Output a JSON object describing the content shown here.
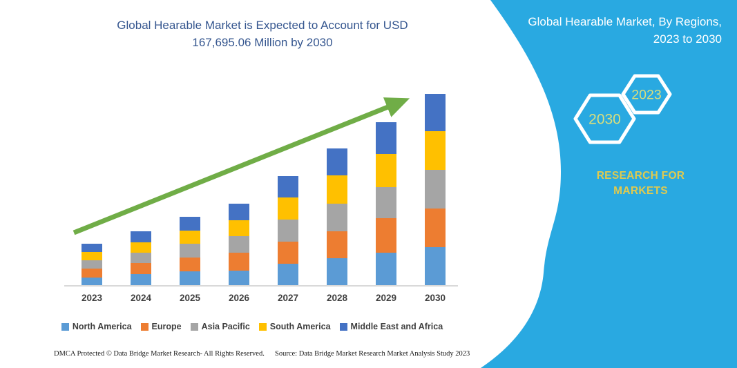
{
  "main_title": {
    "line1": "Global Hearable Market is Expected to Account for USD",
    "line2": "167,695.06 Million by 2030",
    "color": "#35568f"
  },
  "side_panel": {
    "color": "#29a9e1",
    "title_line1": "Global Hearable Market, By Regions,",
    "title_line2": "2023 to 2030",
    "hexagon_back_year": "2030",
    "hexagon_front_year": "2023",
    "hexagon_year_color": "#d9de7d",
    "hexagon_outline_color": "#ffffff",
    "brand_line1": "RESEARCH FOR",
    "brand_line2": "MARKETS",
    "brand_color": "#e0ca4e"
  },
  "chart_data": {
    "type": "bar",
    "subtype": "stacked-vertical",
    "title": "Global Hearable Market is Expected to Account for USD 167,695.06 Million by 2030",
    "unit": "USD Million",
    "values_are_estimates": true,
    "categories": [
      "2023",
      "2024",
      "2025",
      "2026",
      "2027",
      "2028",
      "2029",
      "2030"
    ],
    "series": [
      {
        "name": "North America",
        "color": "#5B9BD5",
        "values": [
          6700,
          9700,
          12100,
          12700,
          18800,
          23600,
          28500,
          33300
        ]
      },
      {
        "name": "Europe",
        "color": "#ED7D31",
        "values": [
          7900,
          9700,
          12100,
          15800,
          19400,
          23600,
          30300,
          33900
        ]
      },
      {
        "name": "Asia Pacific",
        "color": "#A5A5A5",
        "values": [
          7300,
          9100,
          12100,
          14500,
          19400,
          24200,
          27300,
          33900
        ]
      },
      {
        "name": "South America",
        "color": "#FFC000",
        "values": [
          7300,
          9100,
          11500,
          13900,
          19400,
          24800,
          29300,
          33900
        ]
      },
      {
        "name": "Middle East and Africa",
        "color": "#4472C4",
        "values": [
          7300,
          9700,
          12100,
          14500,
          18800,
          23600,
          27900,
          32700
        ]
      }
    ],
    "total_2030": 167695.06,
    "total_2030_label": "USD 167,695.06 Million by 2030",
    "trend_arrow": {
      "color": "#70AD47",
      "direction": "up-right"
    },
    "legend_position": "bottom",
    "gridlines": false,
    "y_axis_visible": false,
    "axis_color": "#d9d9d9",
    "category_label_color": "#3f3f3f"
  },
  "footer": {
    "left": "DMCA Protected © Data Bridge Market Research-  All Rights Reserved.",
    "source": "Source: Data Bridge Market Research  Market Analysis Study 2023"
  }
}
